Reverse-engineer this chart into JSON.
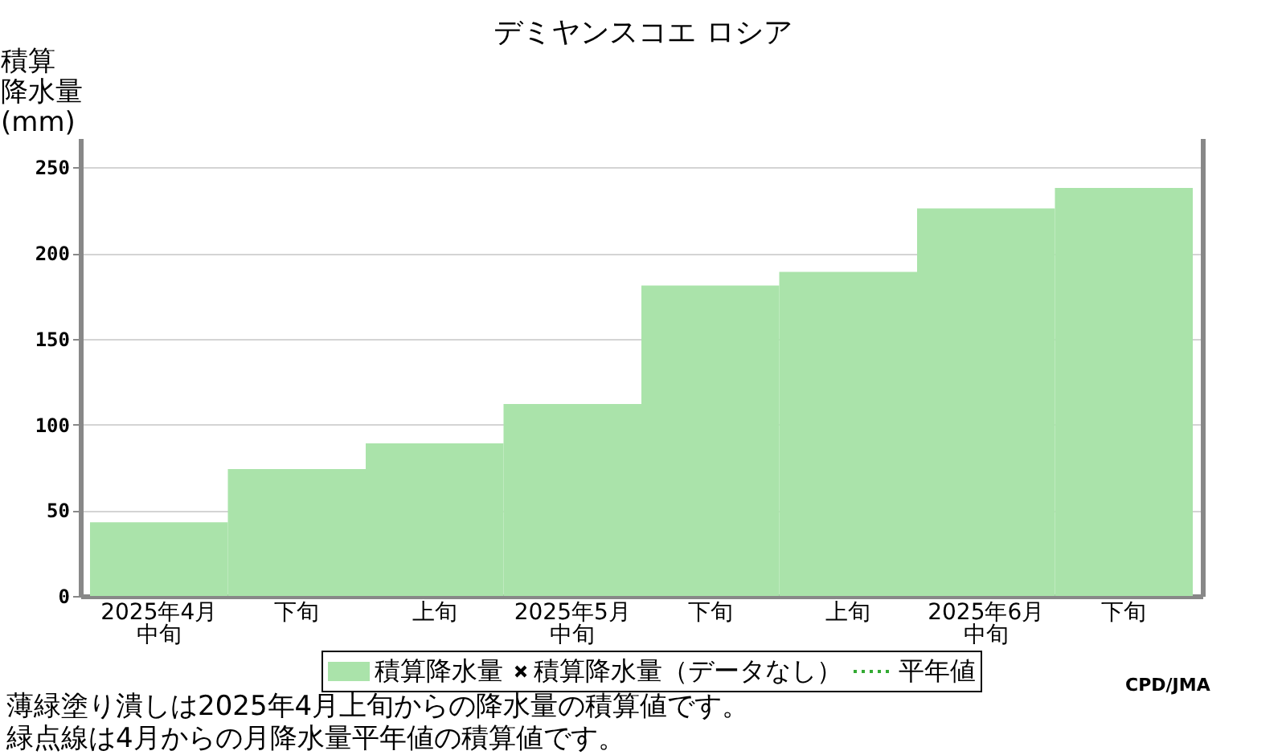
{
  "chart_data": {
    "type": "bar",
    "title": "デミヤンスコエ ロシア",
    "ylabel": "積算降水量(mm)",
    "categories": [
      "2025年4月中旬",
      "下旬",
      "上旬",
      "2025年5月中旬",
      "下旬",
      "上旬",
      "2025年6月中旬",
      "下旬"
    ],
    "series": [
      {
        "name": "積算降水量",
        "color": "#aae3aa",
        "values": [
          43,
          74,
          89,
          112,
          181,
          189,
          226,
          238
        ]
      },
      {
        "name": "積算降水量（データなし）",
        "type": "scatter",
        "marker": "cross",
        "color": "#000000",
        "values": [
          null,
          null,
          null,
          null,
          null,
          null,
          null,
          null
        ]
      },
      {
        "name": "平年値",
        "type": "line",
        "line_style": "dotted",
        "color": "#33aa33",
        "values": [
          null,
          null,
          null,
          null,
          null,
          null,
          null,
          null
        ]
      }
    ],
    "ylim": [
      0,
      267
    ],
    "yticks": [
      0,
      50,
      100,
      150,
      200,
      250
    ],
    "grid": "y",
    "legend": "bottom",
    "annotations": [
      "CPD/JMA",
      "薄緑塗り潰しは2025年4月上旬からの降水量の積算値です。",
      "緑点線は4月からの月降水量平年値の積算値です。"
    ]
  }
}
